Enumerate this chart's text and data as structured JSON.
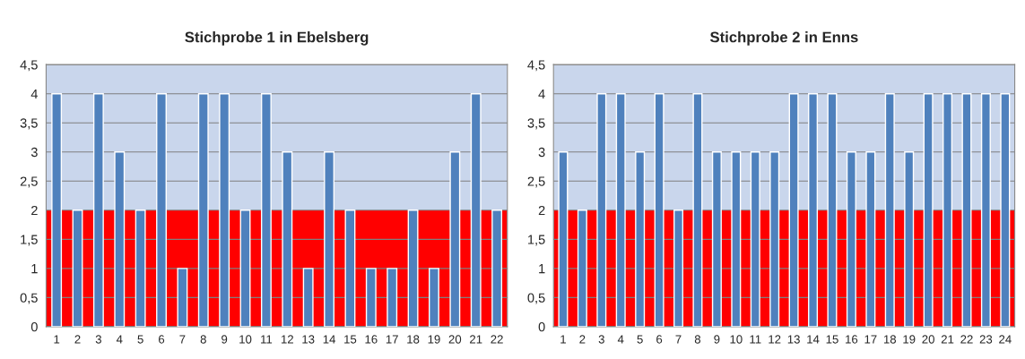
{
  "chart_data": [
    {
      "type": "bar",
      "title": "Stichprobe 1 in Ebelsberg",
      "categories": [
        "1",
        "2",
        "3",
        "4",
        "5",
        "6",
        "7",
        "8",
        "9",
        "10",
        "11",
        "12",
        "13",
        "14",
        "15",
        "16",
        "17",
        "18",
        "19",
        "20",
        "21",
        "22"
      ],
      "values": [
        4,
        2,
        4,
        3,
        2,
        4,
        1,
        4,
        4,
        2,
        4,
        3,
        1,
        3,
        2,
        1,
        1,
        2,
        1,
        3,
        4,
        2
      ],
      "color": "#4f81bd",
      "ylim": [
        0,
        4.5
      ],
      "yticks": [
        0,
        {
          "value": 0.5,
          "label": "0,5"
        },
        1,
        {
          "value": 1.5,
          "label": "1,5"
        },
        2,
        {
          "value": 2.5,
          "label": "2,5"
        },
        3,
        {
          "value": 3.5,
          "label": "3,5"
        },
        4,
        {
          "value": 4.5,
          "label": "4,5"
        }
      ],
      "grid": "y",
      "bands": [
        {
          "axis": "y",
          "from": 0,
          "to": 2,
          "color": "#ff0000"
        },
        {
          "axis": "y",
          "from": 2,
          "to": 4.5,
          "color": "#c9d6ec"
        }
      ]
    },
    {
      "type": "bar",
      "title": "Stichprobe 2 in Enns",
      "categories": [
        "1",
        "2",
        "3",
        "4",
        "5",
        "6",
        "7",
        "8",
        "9",
        "10",
        "11",
        "12",
        "13",
        "14",
        "15",
        "16",
        "17",
        "18",
        "19",
        "20",
        "21",
        "22",
        "23",
        "24"
      ],
      "values": [
        3,
        2,
        4,
        4,
        3,
        4,
        2,
        4,
        3,
        3,
        3,
        3,
        4,
        4,
        4,
        3,
        3,
        4,
        3,
        4,
        4,
        4,
        4,
        4
      ],
      "color": "#4f81bd",
      "ylim": [
        0,
        4.5
      ],
      "yticks": [
        0,
        {
          "value": 0.5,
          "label": "0,5"
        },
        1,
        {
          "value": 1.5,
          "label": "1,5"
        },
        2,
        {
          "value": 2.5,
          "label": "2,5"
        },
        3,
        {
          "value": 3.5,
          "label": "3,5"
        },
        4,
        {
          "value": 4.5,
          "label": "4,5"
        }
      ],
      "grid": "y",
      "bands": [
        {
          "axis": "y",
          "from": 0,
          "to": 2,
          "color": "#ff0000"
        },
        {
          "axis": "y",
          "from": 2,
          "to": 4.5,
          "color": "#c9d6ec"
        }
      ]
    }
  ]
}
